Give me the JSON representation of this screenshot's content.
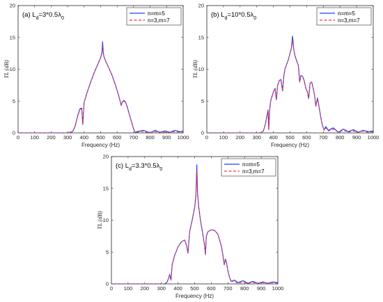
{
  "chart_data": [
    {
      "type": "line",
      "title": "(a) L_d=3*0.5λ_0",
      "title_parts": {
        "prefix": "(a) L",
        "sub1": "d",
        "mid": "=3*0.5λ",
        "sub2": "0"
      },
      "xlabel": "Frequency (Hz)",
      "ylabel": "TL (dB)",
      "xlim": [
        0,
        1000
      ],
      "ylim": [
        0,
        20
      ],
      "xticks": [
        0,
        100,
        200,
        300,
        400,
        500,
        600,
        700,
        800,
        900,
        1000
      ],
      "yticks": [
        0,
        5,
        10,
        15,
        20
      ],
      "legend_position": "top-right",
      "series": [
        {
          "name": "n=m=5",
          "color": "#1f3fff",
          "style": "solid",
          "x": [
            0,
            300,
            330,
            345,
            360,
            375,
            385,
            392,
            400,
            420,
            440,
            460,
            480,
            500,
            508,
            512,
            516,
            520,
            530,
            550,
            570,
            590,
            610,
            620,
            625,
            630,
            640,
            650,
            660,
            675,
            690,
            700,
            710,
            720,
            740,
            760,
            780,
            800,
            830,
            860,
            890,
            920,
            950,
            980,
            1000
          ],
          "y": [
            0,
            0,
            0.2,
            1.0,
            2.6,
            3.8,
            3.9,
            1.3,
            4.8,
            6.5,
            8.0,
            9.4,
            10.6,
            11.8,
            12.6,
            14.3,
            12.7,
            12.0,
            11.3,
            10.2,
            9.0,
            7.5,
            5.8,
            4.8,
            4.3,
            4.8,
            5.1,
            4.9,
            4.2,
            2.8,
            1.5,
            0.6,
            0.05,
            0.2,
            0.3,
            0.4,
            0.2,
            0.0,
            0.4,
            0.1,
            0.3,
            0.1,
            0.4,
            0.2,
            0.3
          ]
        },
        {
          "name": "n=3,m=7",
          "color": "#ff3333",
          "style": "dashed",
          "x": [
            0,
            300,
            330,
            345,
            360,
            375,
            385,
            392,
            400,
            420,
            440,
            460,
            480,
            500,
            508,
            512,
            516,
            520,
            530,
            550,
            570,
            590,
            610,
            620,
            625,
            630,
            640,
            650,
            660,
            675,
            690,
            700,
            710,
            720,
            740,
            760,
            780,
            800,
            830,
            860,
            890,
            920,
            950,
            980,
            1000
          ],
          "y": [
            0,
            0,
            0.2,
            1.0,
            2.5,
            3.7,
            3.8,
            1.3,
            4.8,
            6.5,
            8.0,
            9.4,
            10.6,
            11.8,
            12.4,
            13.6,
            12.5,
            12.0,
            11.3,
            10.2,
            9.0,
            7.5,
            5.8,
            4.8,
            4.3,
            4.8,
            5.0,
            4.8,
            4.2,
            2.8,
            1.5,
            0.6,
            0.05,
            0.1,
            0.2,
            0.2,
            0.1,
            0.0,
            0.2,
            0.1,
            0.1,
            0.1,
            0.2,
            0.1,
            0.1
          ]
        }
      ]
    },
    {
      "type": "line",
      "title": "(b) L_d=10*0.5λ_0",
      "title_parts": {
        "prefix": "(b) L",
        "sub1": "d",
        "mid": "=10*0.5λ",
        "sub2": "0"
      },
      "xlabel": "Frequency (Hz)",
      "ylabel": "TL (dB)",
      "xlim": [
        0,
        1000
      ],
      "ylim": [
        0,
        20
      ],
      "xticks": [
        0,
        100,
        200,
        300,
        400,
        500,
        600,
        700,
        800,
        900,
        1000
      ],
      "yticks": [
        0,
        5,
        10,
        15,
        20
      ],
      "legend_position": "top-right",
      "series": [
        {
          "name": "n=m=5",
          "color": "#1f3fff",
          "style": "solid",
          "x": [
            0,
            320,
            340,
            350,
            360,
            368,
            372,
            378,
            385,
            400,
            410,
            418,
            425,
            435,
            445,
            455,
            462,
            470,
            480,
            490,
            500,
            508,
            515,
            522,
            530,
            540,
            550,
            558,
            565,
            575,
            585,
            595,
            605,
            612,
            620,
            630,
            640,
            648,
            655,
            665,
            675,
            685,
            695,
            705,
            715,
            730,
            760,
            790,
            820,
            850,
            880,
            910,
            940,
            970,
            1000
          ],
          "y": [
            0,
            0,
            0.3,
            1.2,
            2.5,
            3.6,
            0.5,
            3.8,
            5.2,
            6.4,
            7.0,
            5.2,
            7.4,
            8.2,
            8.4,
            6.6,
            8.8,
            10.1,
            10.8,
            11.5,
            12.5,
            13.3,
            15.2,
            13.2,
            12.1,
            11.3,
            10.6,
            8.0,
            9.0,
            8.9,
            8.2,
            7.0,
            6.4,
            5.4,
            7.8,
            8.0,
            6.9,
            5.8,
            4.2,
            5.5,
            4.0,
            2.4,
            1.1,
            0.5,
            1.0,
            0.4,
            0.8,
            0.1,
            0.6,
            0.2,
            0.5,
            0.1,
            0.4,
            0.2,
            0.3
          ]
        },
        {
          "name": "n=3,m=7",
          "color": "#ff3333",
          "style": "dashed",
          "x": [
            0,
            320,
            340,
            350,
            360,
            368,
            372,
            378,
            385,
            400,
            410,
            418,
            425,
            435,
            445,
            455,
            462,
            470,
            480,
            490,
            500,
            508,
            515,
            522,
            530,
            540,
            550,
            558,
            565,
            575,
            585,
            595,
            605,
            612,
            620,
            630,
            640,
            648,
            655,
            665,
            675,
            685,
            695,
            705,
            715,
            730,
            760,
            790,
            820,
            850,
            880,
            910,
            940,
            970,
            1000
          ],
          "y": [
            0,
            0,
            0.3,
            1.2,
            2.4,
            3.5,
            0.5,
            3.7,
            5.1,
            6.4,
            7.0,
            5.2,
            7.4,
            8.2,
            8.4,
            6.6,
            8.8,
            10.1,
            10.8,
            11.5,
            12.5,
            13.2,
            14.5,
            13.1,
            12.1,
            11.3,
            10.6,
            8.0,
            9.0,
            8.9,
            8.2,
            7.0,
            6.4,
            5.4,
            7.8,
            8.0,
            6.9,
            5.8,
            4.2,
            5.4,
            4.0,
            2.4,
            1.1,
            0.4,
            0.8,
            0.3,
            0.6,
            0.1,
            0.4,
            0.1,
            0.3,
            0.1,
            0.3,
            0.1,
            0.2
          ]
        }
      ]
    },
    {
      "type": "line",
      "title": "(c) L_d=3.3*0.5λ_0",
      "title_parts": {
        "prefix": "(c) L",
        "sub1": "d",
        "mid": "=3.3*0.5λ",
        "sub2": "0"
      },
      "xlabel": "Frequency (Hz)",
      "ylabel": "TL (dB)",
      "xlim": [
        0,
        1000
      ],
      "ylim": [
        0,
        20
      ],
      "xticks": [
        0,
        100,
        200,
        300,
        400,
        500,
        600,
        700,
        800,
        900,
        1000
      ],
      "yticks": [
        0,
        5,
        10,
        15,
        20
      ],
      "legend_position": "top-right",
      "series": [
        {
          "name": "n=m=5",
          "color": "#1f3fff",
          "style": "solid",
          "x": [
            0,
            320,
            335,
            345,
            350,
            358,
            365,
            380,
            400,
            420,
            440,
            452,
            460,
            470,
            485,
            500,
            508,
            513,
            518,
            525,
            535,
            548,
            560,
            565,
            570,
            580,
            600,
            620,
            640,
            660,
            670,
            678,
            685,
            692,
            700,
            710,
            720,
            740,
            760,
            790,
            820,
            850,
            880,
            910,
            940,
            970,
            1000
          ],
          "y": [
            0,
            0,
            0.3,
            1.0,
            1.5,
            0.6,
            3.0,
            4.5,
            5.8,
            6.6,
            6.9,
            6.0,
            4.8,
            8.2,
            10.0,
            12.0,
            14.0,
            18.7,
            14.0,
            12.0,
            10.0,
            8.0,
            6.0,
            4.6,
            7.5,
            8.2,
            8.5,
            8.4,
            7.8,
            6.0,
            4.5,
            3.0,
            3.9,
            3.3,
            2.0,
            1.0,
            0.4,
            0.6,
            0.2,
            0.5,
            0.1,
            0.4,
            0.1,
            0.3,
            0.1,
            0.3,
            0.2
          ]
        },
        {
          "name": "n=3,m=7",
          "color": "#ff3333",
          "style": "dashed",
          "x": [
            0,
            320,
            335,
            345,
            350,
            358,
            365,
            380,
            400,
            420,
            440,
            452,
            460,
            470,
            485,
            500,
            508,
            513,
            518,
            525,
            535,
            548,
            560,
            565,
            570,
            580,
            600,
            620,
            640,
            660,
            670,
            678,
            685,
            692,
            700,
            710,
            720,
            740,
            760,
            790,
            820,
            850,
            880,
            910,
            940,
            970,
            1000
          ],
          "y": [
            0,
            0,
            0.3,
            1.0,
            1.4,
            0.6,
            3.0,
            4.5,
            5.8,
            6.6,
            6.9,
            6.0,
            4.8,
            8.2,
            10.0,
            12.0,
            13.8,
            17.8,
            13.8,
            12.0,
            10.0,
            8.0,
            6.0,
            4.6,
            7.5,
            8.2,
            8.5,
            8.4,
            7.8,
            6.0,
            4.5,
            3.0,
            3.8,
            3.2,
            2.0,
            1.0,
            0.4,
            0.4,
            0.1,
            0.3,
            0.1,
            0.2,
            0.1,
            0.2,
            0.1,
            0.2,
            0.1
          ]
        }
      ]
    }
  ]
}
